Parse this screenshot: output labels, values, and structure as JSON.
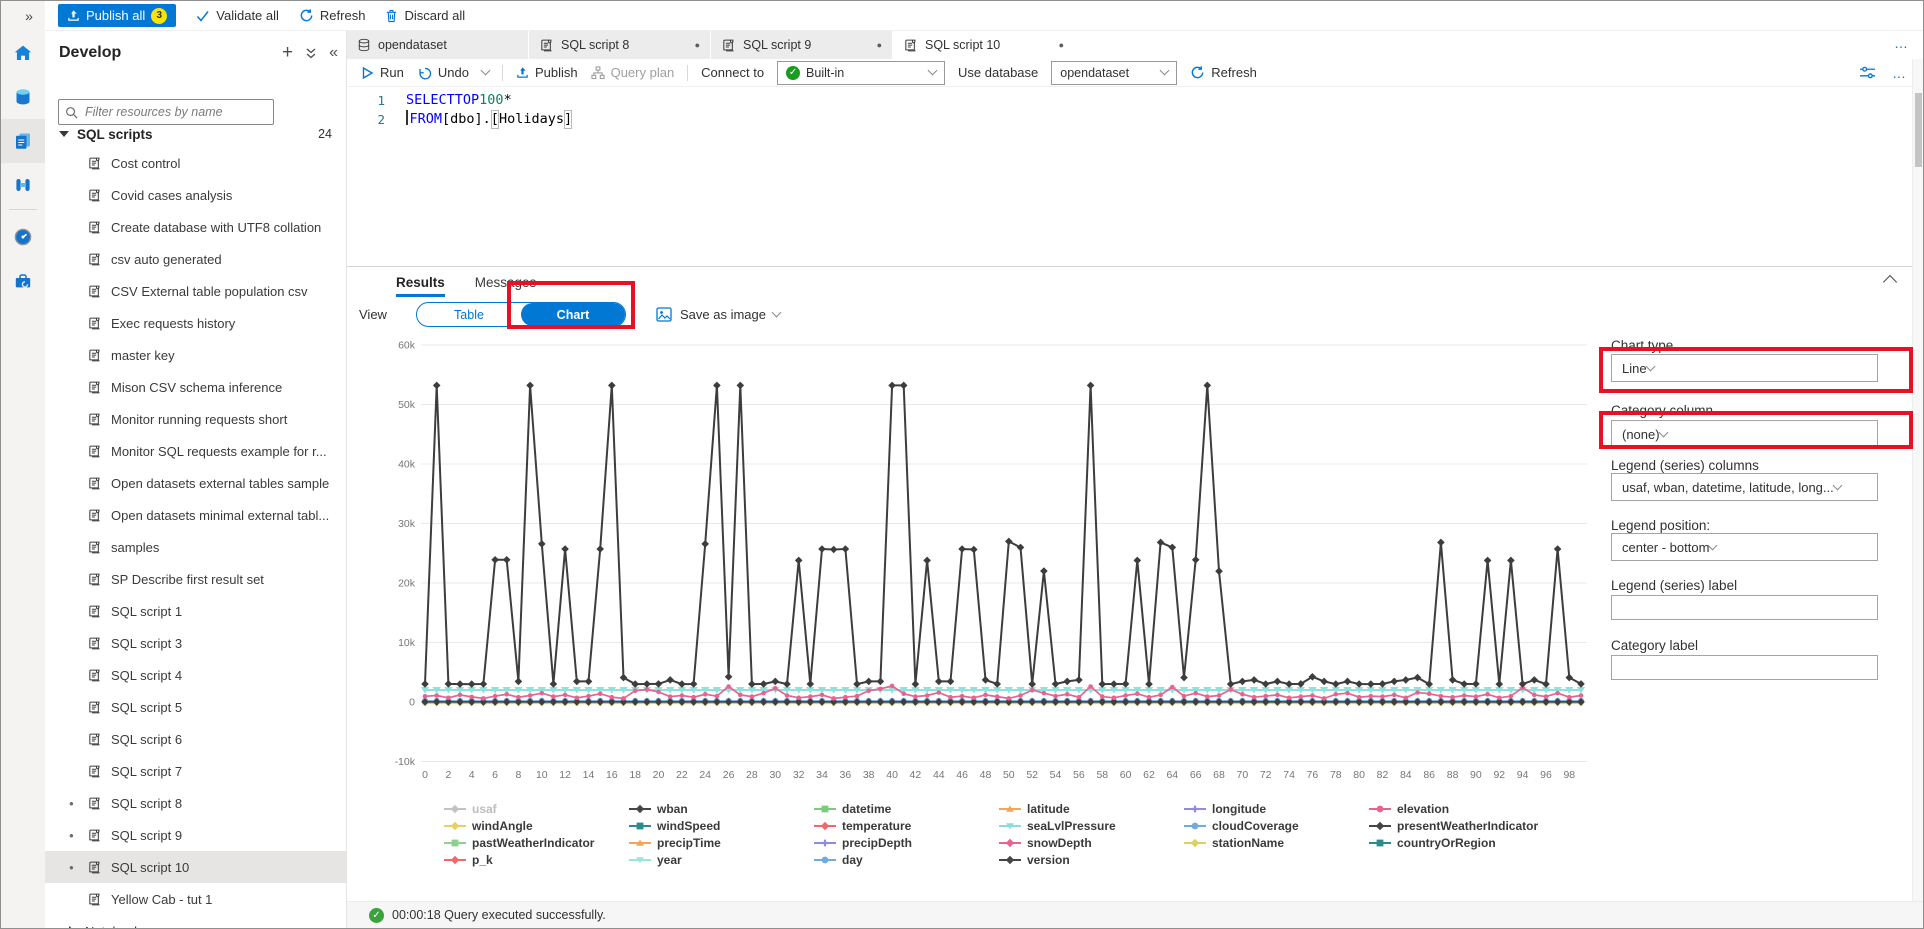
{
  "icons": {
    "rail_expand": "»",
    "more": "…",
    "collapse_panel": "«",
    "plus": "+"
  },
  "command_bar": {
    "publish_all": "Publish all",
    "publish_badge": "3",
    "validate_all": "Validate all",
    "refresh": "Refresh",
    "discard_all": "Discard all"
  },
  "sidebar": {
    "title": "Develop",
    "filter_placeholder": "Filter resources by name",
    "section": {
      "label": "SQL scripts",
      "count": "24"
    },
    "items": [
      {
        "label": "Cost control"
      },
      {
        "label": "Covid cases analysis"
      },
      {
        "label": "Create database with UTF8 collation"
      },
      {
        "label": "csv auto generated"
      },
      {
        "label": "CSV External table population csv"
      },
      {
        "label": "Exec requests history"
      },
      {
        "label": "master key"
      },
      {
        "label": "Mison CSV schema inference"
      },
      {
        "label": "Monitor running requests short"
      },
      {
        "label": "Monitor SQL requests example for r..."
      },
      {
        "label": "Open datasets external tables sample"
      },
      {
        "label": "Open datasets minimal external tabl..."
      },
      {
        "label": "samples"
      },
      {
        "label": "SP Describe first result set"
      },
      {
        "label": "SQL script 1"
      },
      {
        "label": "SQL script 3"
      },
      {
        "label": "SQL script 4"
      },
      {
        "label": "SQL script 5"
      },
      {
        "label": "SQL script 6"
      },
      {
        "label": "SQL script 7"
      },
      {
        "label": "SQL script 8",
        "dirty": true
      },
      {
        "label": "SQL script 9",
        "dirty": true
      },
      {
        "label": "SQL script 10",
        "dirty": true,
        "selected": true
      },
      {
        "label": "Yellow Cab - tut 1"
      },
      {
        "label": "Notebooks",
        "group": true
      }
    ]
  },
  "tabs": {
    "items": [
      {
        "label": "opendataset",
        "icon": "dataset"
      },
      {
        "label": "SQL script 8",
        "icon": "script",
        "dirty": true
      },
      {
        "label": "SQL script 9",
        "icon": "script",
        "dirty": true
      },
      {
        "label": "SQL script 10",
        "icon": "script",
        "dirty": true,
        "active": true
      }
    ],
    "more": "…"
  },
  "query_toolbar": {
    "run": "Run",
    "undo": "Undo",
    "publish": "Publish",
    "query_plan": "Query plan",
    "connect_to": "Connect to",
    "connect_value": "Built-in",
    "use_database": "Use database",
    "database_value": "opendataset",
    "refresh": "Refresh"
  },
  "editor": {
    "lines": [
      {
        "num": "1",
        "tokens": [
          {
            "t": "SELECT ",
            "c": "kw"
          },
          {
            "t": "TOP ",
            "c": "kw"
          },
          {
            "t": "100",
            "c": "num"
          },
          {
            "t": " *",
            "c": "pl"
          }
        ]
      },
      {
        "num": "2",
        "tokens": [
          {
            "t": "",
            "c": "caret"
          },
          {
            "t": "FROM ",
            "c": "kw"
          },
          {
            "t": "[dbo].",
            "c": "pl"
          },
          {
            "t": "[",
            "c": "br"
          },
          {
            "t": "Holidays",
            "c": "pl"
          },
          {
            "t": "]",
            "c": "br"
          }
        ]
      }
    ]
  },
  "results": {
    "tab_results": "Results",
    "tab_messages": "Messages",
    "view_label": "View",
    "table_btn": "Table",
    "chart_btn": "Chart",
    "save_as_image": "Save as image"
  },
  "chart_options": {
    "chart_type_label": "Chart type",
    "chart_type_value": "Line",
    "category_column_label": "Category column",
    "category_column_value": "(none)",
    "legend_columns_label": "Legend (series) columns",
    "legend_columns_value": "usaf, wban, datetime, latitude, long...",
    "legend_position_label": "Legend position:",
    "legend_position_value": "center - bottom",
    "legend_series_label": "Legend (series) label",
    "category_label_label": "Category label"
  },
  "status_bar": {
    "text": "00:00:18 Query executed successfully."
  },
  "chart_data": {
    "type": "line",
    "title": "",
    "xlabel": "",
    "ylabel": "",
    "ylim": [
      -10000,
      60000
    ],
    "grid": true,
    "legend_position": "center-bottom",
    "y_ticks": [
      {
        "label": "-10k",
        "value": -10000
      },
      {
        "label": "0",
        "value": 0
      },
      {
        "label": "10k",
        "value": 10000
      },
      {
        "label": "20k",
        "value": 20000
      },
      {
        "label": "30k",
        "value": 30000
      },
      {
        "label": "40k",
        "value": 40000
      },
      {
        "label": "50k",
        "value": 50000
      },
      {
        "label": "60k",
        "value": 60000
      }
    ],
    "x_ticks": [
      "0",
      "2",
      "4",
      "6",
      "8",
      "10",
      "12",
      "14",
      "16",
      "18",
      "20",
      "22",
      "24",
      "26",
      "28",
      "30",
      "32",
      "34",
      "36",
      "38",
      "40",
      "42",
      "44",
      "46",
      "48",
      "50",
      "52",
      "54",
      "56",
      "58",
      "60",
      "62",
      "64",
      "66",
      "68",
      "70",
      "72",
      "74",
      "76",
      "78",
      "80",
      "82",
      "84",
      "86",
      "88",
      "90",
      "92",
      "94",
      "96",
      "98"
    ],
    "series": [
      {
        "name": "stationName",
        "color": "#ddd060",
        "shape": "diamond",
        "marker_size": 2.2,
        "line_width": 1.3,
        "flat_value": -260
      },
      {
        "name": "day",
        "color": "#72aadf",
        "shape": "circle",
        "marker_size": 3.1,
        "line_width": 1.6,
        "flat_value": 180
      },
      {
        "name": "version",
        "color": "#3f3f3f",
        "shape": "diamond",
        "marker_size": 3,
        "line_width": 1.6,
        "flat_value": 20
      },
      {
        "name": "year",
        "color": "#8fe2dc",
        "shape": "triangle-down",
        "marker_size": 3.6,
        "line_width": 2,
        "flat_value": 2012
      },
      {
        "name": "elevation",
        "color": "#e8638f",
        "shape": "circle",
        "marker_size": 2.3,
        "line_width": 1.7,
        "values": [
          950,
          1100,
          700,
          1200,
          850,
          600,
          1000,
          1300,
          800,
          1100,
          1500,
          900,
          1200,
          700,
          1000,
          1400,
          800,
          600,
          1900,
          2100,
          1700,
          900,
          1100,
          800,
          1300,
          1000,
          2600,
          1200,
          900,
          1500,
          2300,
          1100,
          700,
          900,
          1200,
          600,
          800,
          1000,
          1900,
          2200,
          2700,
          1400,
          900,
          1100,
          1600,
          800,
          1000,
          700,
          1200,
          900,
          600,
          1100,
          2000,
          1500,
          1000,
          1300,
          800,
          2600,
          900,
          700,
          1100,
          1400,
          800,
          1200,
          2500,
          1000,
          1500,
          900,
          1100,
          2100,
          1300,
          800,
          1000,
          1200,
          700,
          900,
          1100,
          600,
          1300,
          1500,
          800,
          1000,
          900,
          1200,
          700,
          1600,
          1400,
          1000,
          800,
          1100,
          900,
          1300,
          700,
          1000,
          2400,
          1200,
          900,
          1500,
          800,
          1100
        ]
      },
      {
        "name": "wban",
        "color": "#3d3d3d",
        "shape": "diamond",
        "marker_size": 3,
        "line_width": 2,
        "values": [
          3017,
          53217,
          3047,
          3013,
          3013,
          3017,
          23907,
          23907,
          3467,
          53217,
          26564,
          3017,
          25711,
          3464,
          3464,
          25711,
          53217,
          4107,
          3013,
          3017,
          3047,
          3713,
          3013,
          3017,
          26564,
          53217,
          4237,
          53217,
          3013,
          3017,
          3464,
          3013,
          23803,
          3017,
          25711,
          25624,
          25711,
          3013,
          3464,
          3467,
          53217,
          53217,
          3013,
          23803,
          3464,
          3467,
          25711,
          25624,
          3713,
          3017,
          26986,
          25984,
          3013,
          22010,
          3017,
          3464,
          3713,
          53217,
          3013,
          3017,
          3047,
          23803,
          3013,
          26816,
          25984,
          4107,
          23907,
          53217,
          21989,
          3013,
          3464,
          3713,
          3017,
          3464,
          3013,
          3047,
          4237,
          3464,
          3013,
          3467,
          3017,
          3013,
          3047,
          3464,
          3713,
          4107,
          3013,
          26816,
          3713,
          3017,
          3047,
          23803,
          3013,
          23803,
          3017,
          3713,
          3013,
          25711,
          4107,
          3047
        ]
      }
    ],
    "legend_columns": [
      [
        {
          "label": "usaf",
          "color": "#c3c3c3",
          "shape": "diamond",
          "dimmed": true
        },
        {
          "label": "windAngle",
          "color": "#e6cf63",
          "shape": "diamond"
        },
        {
          "label": "pastWeatherIndicator",
          "color": "#8ed08e",
          "shape": "square"
        },
        {
          "label": "p_k",
          "color": "#ee6a6a",
          "shape": "diamond"
        }
      ],
      [
        {
          "label": "wban",
          "color": "#454545",
          "shape": "diamond"
        },
        {
          "label": "windSpeed",
          "color": "#2b8c8c",
          "shape": "square"
        },
        {
          "label": "precipTime",
          "color": "#f2a659",
          "shape": "triangle-up"
        },
        {
          "label": "year",
          "color": "#9fe3dd",
          "shape": "triangle-down"
        }
      ],
      [
        {
          "label": "datetime",
          "color": "#7ccc7c",
          "shape": "square"
        },
        {
          "label": "temperature",
          "color": "#ee6a6a",
          "shape": "diamond"
        },
        {
          "label": "precipDepth",
          "color": "#8d8de0",
          "shape": "plus"
        },
        {
          "label": "day",
          "color": "#72aadf",
          "shape": "circle"
        }
      ],
      [
        {
          "label": "latitude",
          "color": "#f2a659",
          "shape": "triangle-up"
        },
        {
          "label": "seaLvlPressure",
          "color": "#8adcdc",
          "shape": "triangle-down"
        },
        {
          "label": "snowDepth",
          "color": "#e8638f",
          "shape": "diamond"
        },
        {
          "label": "version",
          "color": "#454545",
          "shape": "diamond"
        }
      ],
      [
        {
          "label": "longitude",
          "color": "#8d8de0",
          "shape": "plus"
        },
        {
          "label": "cloudCoverage",
          "color": "#72aadf",
          "shape": "circle"
        },
        {
          "label": "stationName",
          "color": "#ddd060",
          "shape": "diamond"
        }
      ],
      [
        {
          "label": "elevation",
          "color": "#e8638f",
          "shape": "circle"
        },
        {
          "label": "presentWeatherIndicator",
          "color": "#454545",
          "shape": "diamond"
        },
        {
          "label": "countryOrRegion",
          "color": "#2b8c8c",
          "shape": "square"
        }
      ]
    ]
  }
}
